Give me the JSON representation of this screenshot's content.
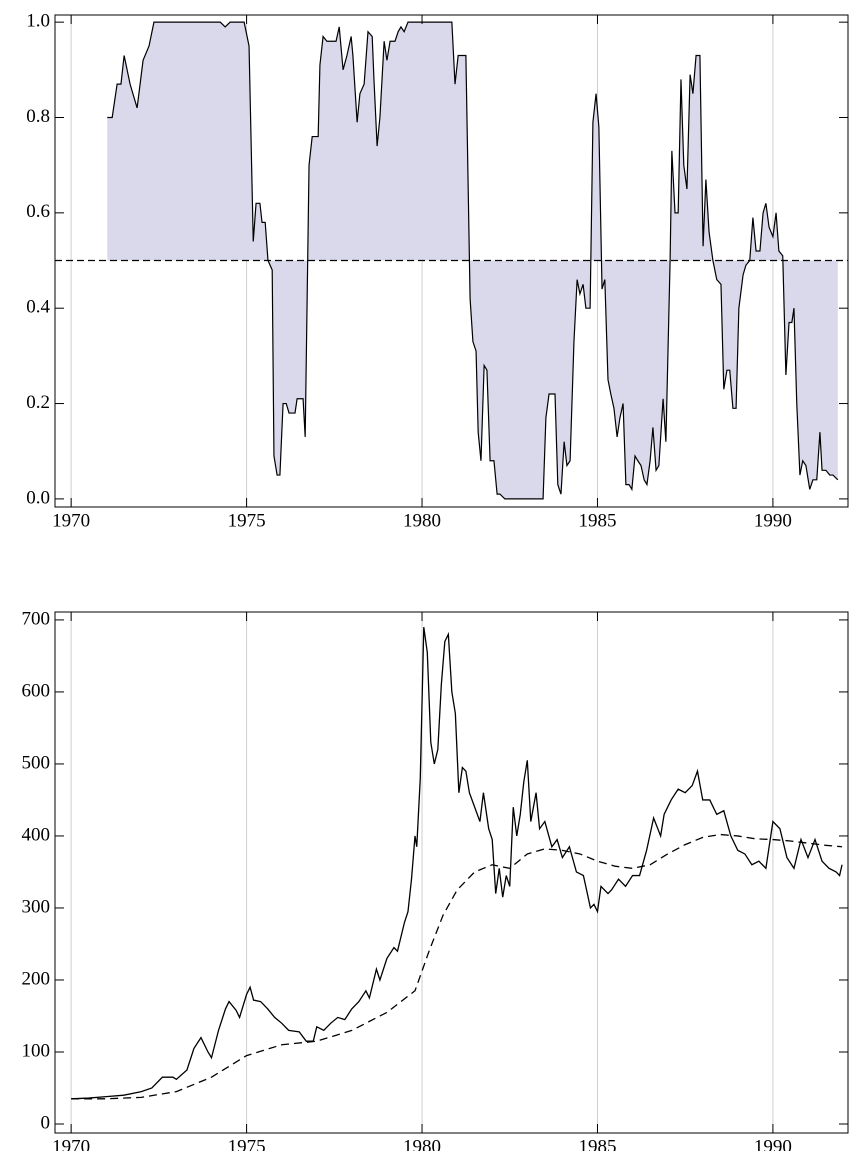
{
  "chart_data": [
    {
      "type": "area",
      "xlim": [
        1969.54,
        1992.14
      ],
      "ylim": [
        -0.017,
        1.015
      ],
      "xticks": [
        1970,
        1975,
        1980,
        1985,
        1990
      ],
      "yticks": [
        {
          "value": 0,
          "label": "0.0"
        },
        0.2,
        0.4,
        0.6,
        0.8,
        {
          "value": 1,
          "label": "1.0"
        }
      ],
      "grid": true,
      "baseline": 0.5,
      "color": "#000000",
      "fill": "#d9d9eb",
      "x": [
        1971.03,
        1971.17,
        1971.31,
        1971.42,
        1971.51,
        1971.68,
        1971.88,
        1972.05,
        1972.22,
        1972.36,
        1972.82,
        1973.68,
        1974.25,
        1974.39,
        1974.53,
        1974.93,
        1975.07,
        1975.19,
        1975.27,
        1975.38,
        1975.44,
        1975.53,
        1975.61,
        1975.73,
        1975.78,
        1975.87,
        1975.95,
        1976.04,
        1976.13,
        1976.21,
        1976.38,
        1976.44,
        1976.61,
        1976.67,
        1976.78,
        1976.87,
        1977.04,
        1977.09,
        1977.18,
        1977.29,
        1977.55,
        1977.64,
        1977.75,
        1977.86,
        1977.98,
        1978.03,
        1978.15,
        1978.23,
        1978.35,
        1978.46,
        1978.58,
        1978.63,
        1978.72,
        1978.8,
        1978.92,
        1979.0,
        1979.09,
        1979.23,
        1979.32,
        1979.4,
        1979.49,
        1979.6,
        1980.23,
        1980.85,
        1980.94,
        1981.03,
        1981.25,
        1981.37,
        1981.45,
        1981.54,
        1981.6,
        1981.68,
        1981.77,
        1981.85,
        1981.94,
        1982.05,
        1982.14,
        1982.22,
        1982.36,
        1982.79,
        1983.22,
        1983.36,
        1983.45,
        1983.53,
        1983.62,
        1983.79,
        1983.87,
        1983.96,
        1984.05,
        1984.13,
        1984.22,
        1984.33,
        1984.42,
        1984.5,
        1984.59,
        1984.67,
        1984.79,
        1984.87,
        1984.96,
        1985.04,
        1985.13,
        1985.21,
        1985.3,
        1985.38,
        1985.47,
        1985.56,
        1985.64,
        1985.73,
        1985.81,
        1985.9,
        1985.98,
        1986.07,
        1986.15,
        1986.24,
        1986.33,
        1986.41,
        1986.5,
        1986.58,
        1986.67,
        1986.75,
        1986.87,
        1986.95,
        1987.07,
        1987.12,
        1987.21,
        1987.3,
        1987.38,
        1987.46,
        1987.55,
        1987.64,
        1987.72,
        1987.81,
        1987.92,
        1988.01,
        1988.09,
        1988.18,
        1988.29,
        1988.4,
        1988.52,
        1988.6,
        1988.69,
        1988.77,
        1988.86,
        1988.95,
        1989.03,
        1989.15,
        1989.23,
        1989.34,
        1989.43,
        1989.52,
        1989.63,
        1989.72,
        1989.8,
        1989.89,
        1990.0,
        1990.09,
        1990.17,
        1990.28,
        1990.37,
        1990.46,
        1990.54,
        1990.6,
        1990.68,
        1990.77,
        1990.85,
        1990.94,
        1991.05,
        1991.14,
        1991.25,
        1991.34,
        1991.4,
        1991.51,
        1991.62,
        1991.71,
        1991.85
      ],
      "values": [
        0.8,
        0.8,
        0.87,
        0.87,
        0.93,
        0.87,
        0.82,
        0.92,
        0.95,
        1.0,
        1.0,
        1.0,
        1.0,
        0.99,
        1.0,
        1.0,
        0.95,
        0.54,
        0.62,
        0.62,
        0.58,
        0.58,
        0.5,
        0.48,
        0.09,
        0.05,
        0.05,
        0.2,
        0.2,
        0.18,
        0.18,
        0.21,
        0.21,
        0.13,
        0.7,
        0.76,
        0.76,
        0.91,
        0.97,
        0.96,
        0.96,
        0.99,
        0.9,
        0.93,
        0.97,
        0.93,
        0.79,
        0.85,
        0.87,
        0.98,
        0.97,
        0.88,
        0.74,
        0.8,
        0.96,
        0.92,
        0.96,
        0.96,
        0.98,
        0.99,
        0.98,
        1.0,
        1.0,
        1.0,
        0.87,
        0.93,
        0.93,
        0.42,
        0.33,
        0.31,
        0.14,
        0.08,
        0.28,
        0.27,
        0.08,
        0.08,
        0.01,
        0.01,
        0.0,
        0.0,
        0.0,
        0.0,
        0.0,
        0.17,
        0.22,
        0.22,
        0.03,
        0.01,
        0.12,
        0.07,
        0.08,
        0.33,
        0.46,
        0.43,
        0.45,
        0.4,
        0.4,
        0.79,
        0.85,
        0.78,
        0.44,
        0.46,
        0.25,
        0.22,
        0.19,
        0.13,
        0.17,
        0.2,
        0.03,
        0.03,
        0.02,
        0.09,
        0.08,
        0.07,
        0.04,
        0.03,
        0.08,
        0.15,
        0.06,
        0.07,
        0.21,
        0.12,
        0.5,
        0.73,
        0.6,
        0.6,
        0.88,
        0.7,
        0.65,
        0.89,
        0.85,
        0.93,
        0.93,
        0.53,
        0.67,
        0.56,
        0.5,
        0.46,
        0.45,
        0.23,
        0.27,
        0.27,
        0.19,
        0.19,
        0.4,
        0.47,
        0.49,
        0.5,
        0.59,
        0.52,
        0.52,
        0.6,
        0.62,
        0.57,
        0.55,
        0.6,
        0.52,
        0.51,
        0.26,
        0.37,
        0.37,
        0.4,
        0.2,
        0.05,
        0.08,
        0.07,
        0.02,
        0.04,
        0.04,
        0.14,
        0.06,
        0.06,
        0.05,
        0.05,
        0.04
      ]
    },
    {
      "type": "line",
      "xlim": [
        1969.54,
        1992.14
      ],
      "ylim": [
        -12.5,
        711
      ],
      "xticks": [
        1970,
        1975,
        1980,
        1985,
        1990
      ],
      "yticks": [
        0,
        100,
        200,
        300,
        400,
        500,
        600,
        700
      ],
      "grid": true,
      "series": [
        {
          "color": "#000000",
          "dashed": false,
          "x": [
            1970.0,
            1970.5,
            1971.0,
            1971.5,
            1972.0,
            1972.3,
            1972.6,
            1972.9,
            1973.0,
            1973.3,
            1973.5,
            1973.7,
            1973.9,
            1974.0,
            1974.2,
            1974.4,
            1974.5,
            1974.7,
            1974.8,
            1975.0,
            1975.1,
            1975.2,
            1975.4,
            1975.6,
            1975.8,
            1976.0,
            1976.2,
            1976.5,
            1976.7,
            1976.9,
            1977.0,
            1977.2,
            1977.4,
            1977.6,
            1977.8,
            1978.0,
            1978.2,
            1978.4,
            1978.5,
            1978.7,
            1978.8,
            1979.0,
            1979.2,
            1979.3,
            1979.5,
            1979.6,
            1979.7,
            1979.8,
            1979.85,
            1979.95,
            1980.05,
            1980.15,
            1980.25,
            1980.35,
            1980.45,
            1980.55,
            1980.65,
            1980.75,
            1980.85,
            1980.95,
            1981.05,
            1981.15,
            1981.25,
            1981.35,
            1981.5,
            1981.65,
            1981.75,
            1981.9,
            1982.0,
            1982.1,
            1982.2,
            1982.3,
            1982.4,
            1982.5,
            1982.6,
            1982.7,
            1982.8,
            1982.9,
            1983.0,
            1983.1,
            1983.25,
            1983.35,
            1983.5,
            1983.7,
            1983.85,
            1984.0,
            1984.2,
            1984.4,
            1984.6,
            1984.8,
            1984.9,
            1985.0,
            1985.1,
            1985.3,
            1985.4,
            1985.6,
            1985.8,
            1986.0,
            1986.2,
            1986.4,
            1986.6,
            1986.8,
            1986.9,
            1987.1,
            1987.3,
            1987.5,
            1987.7,
            1987.85,
            1988.0,
            1988.2,
            1988.4,
            1988.6,
            1988.8,
            1989.0,
            1989.2,
            1989.4,
            1989.6,
            1989.8,
            1990.0,
            1990.2,
            1990.4,
            1990.6,
            1990.8,
            1991.0,
            1991.2,
            1991.4,
            1991.6,
            1991.8,
            1991.9,
            1991.97
          ],
          "values": [
            35,
            36,
            38,
            40,
            45,
            50,
            65,
            65,
            62,
            75,
            105,
            120,
            100,
            92,
            130,
            160,
            170,
            158,
            148,
            180,
            190,
            172,
            170,
            160,
            148,
            140,
            130,
            128,
            115,
            115,
            135,
            130,
            140,
            148,
            145,
            160,
            170,
            185,
            175,
            215,
            200,
            230,
            245,
            240,
            280,
            295,
            340,
            400,
            385,
            480,
            690,
            655,
            530,
            500,
            520,
            610,
            670,
            680,
            600,
            570,
            460,
            495,
            490,
            460,
            440,
            420,
            460,
            410,
            395,
            320,
            355,
            315,
            345,
            330,
            440,
            400,
            430,
            475,
            505,
            420,
            460,
            410,
            420,
            385,
            395,
            370,
            385,
            350,
            345,
            300,
            305,
            295,
            330,
            320,
            325,
            340,
            330,
            345,
            345,
            380,
            425,
            400,
            430,
            450,
            465,
            460,
            470,
            490,
            450,
            450,
            430,
            435,
            400,
            380,
            375,
            360,
            365,
            355,
            420,
            410,
            370,
            355,
            395,
            370,
            395,
            365,
            355,
            350,
            345,
            360
          ]
        },
        {
          "color": "#000000",
          "dashed": true,
          "x": [
            1970,
            1971,
            1972,
            1973,
            1974,
            1975,
            1976,
            1977,
            1978,
            1979,
            1979.8,
            1980.2,
            1980.6,
            1981,
            1981.5,
            1982,
            1982.5,
            1983,
            1983.5,
            1984,
            1984.5,
            1985,
            1985.5,
            1986,
            1986.5,
            1987,
            1987.5,
            1988,
            1988.5,
            1989,
            1989.5,
            1990,
            1990.5,
            1991,
            1991.5,
            1991.97
          ],
          "values": [
            35,
            35,
            37,
            45,
            65,
            95,
            110,
            115,
            130,
            155,
            185,
            240,
            290,
            325,
            350,
            360,
            355,
            375,
            382,
            380,
            375,
            365,
            358,
            355,
            360,
            375,
            388,
            398,
            402,
            400,
            396,
            395,
            393,
            390,
            387,
            385
          ]
        }
      ]
    }
  ]
}
